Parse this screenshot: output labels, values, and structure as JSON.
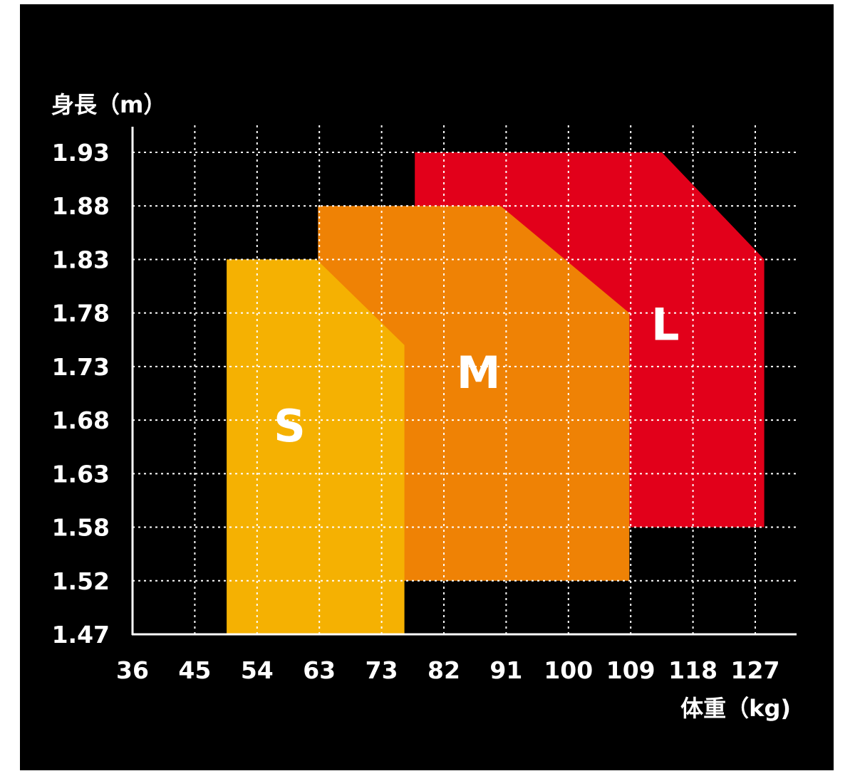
{
  "chart_data": {
    "type": "area",
    "title": "",
    "xlabel": "体重（kg)",
    "ylabel": "身長（m）",
    "x_ticks": [
      "36",
      "45",
      "54",
      "63",
      "73",
      "82",
      "91",
      "100",
      "109",
      "118",
      "127"
    ],
    "y_ticks": [
      "1.93",
      "1.88",
      "1.83",
      "1.78",
      "1.73",
      "1.68",
      "1.63",
      "1.58",
      "1.52",
      "1.47"
    ],
    "grid": true,
    "legend": "none",
    "series": [
      {
        "name": "L",
        "color": "#e2001a",
        "polygon": [
          [
            77.8,
            1.58
          ],
          [
            77.8,
            1.93
          ],
          [
            113.5,
            1.93
          ],
          [
            128.3,
            1.83
          ],
          [
            128.3,
            1.58
          ]
        ]
      },
      {
        "name": "M",
        "color": "#ef8205",
        "polygon": [
          [
            62.8,
            1.52
          ],
          [
            62.8,
            1.88
          ],
          [
            90.2,
            1.88
          ],
          [
            108.8,
            1.78
          ],
          [
            108.8,
            1.52
          ]
        ]
      },
      {
        "name": "S",
        "color": "#f5b102",
        "polygon": [
          [
            49.6,
            1.47
          ],
          [
            49.6,
            1.83
          ],
          [
            62.6,
            1.83
          ],
          [
            76.3,
            1.75
          ],
          [
            76.3,
            1.47
          ]
        ]
      }
    ],
    "labels": [
      {
        "text": "L",
        "x": 114.0,
        "y": 1.755
      },
      {
        "text": "M",
        "x": 87.0,
        "y": 1.71
      },
      {
        "text": "S",
        "x": 58.7,
        "y": 1.66
      }
    ]
  }
}
